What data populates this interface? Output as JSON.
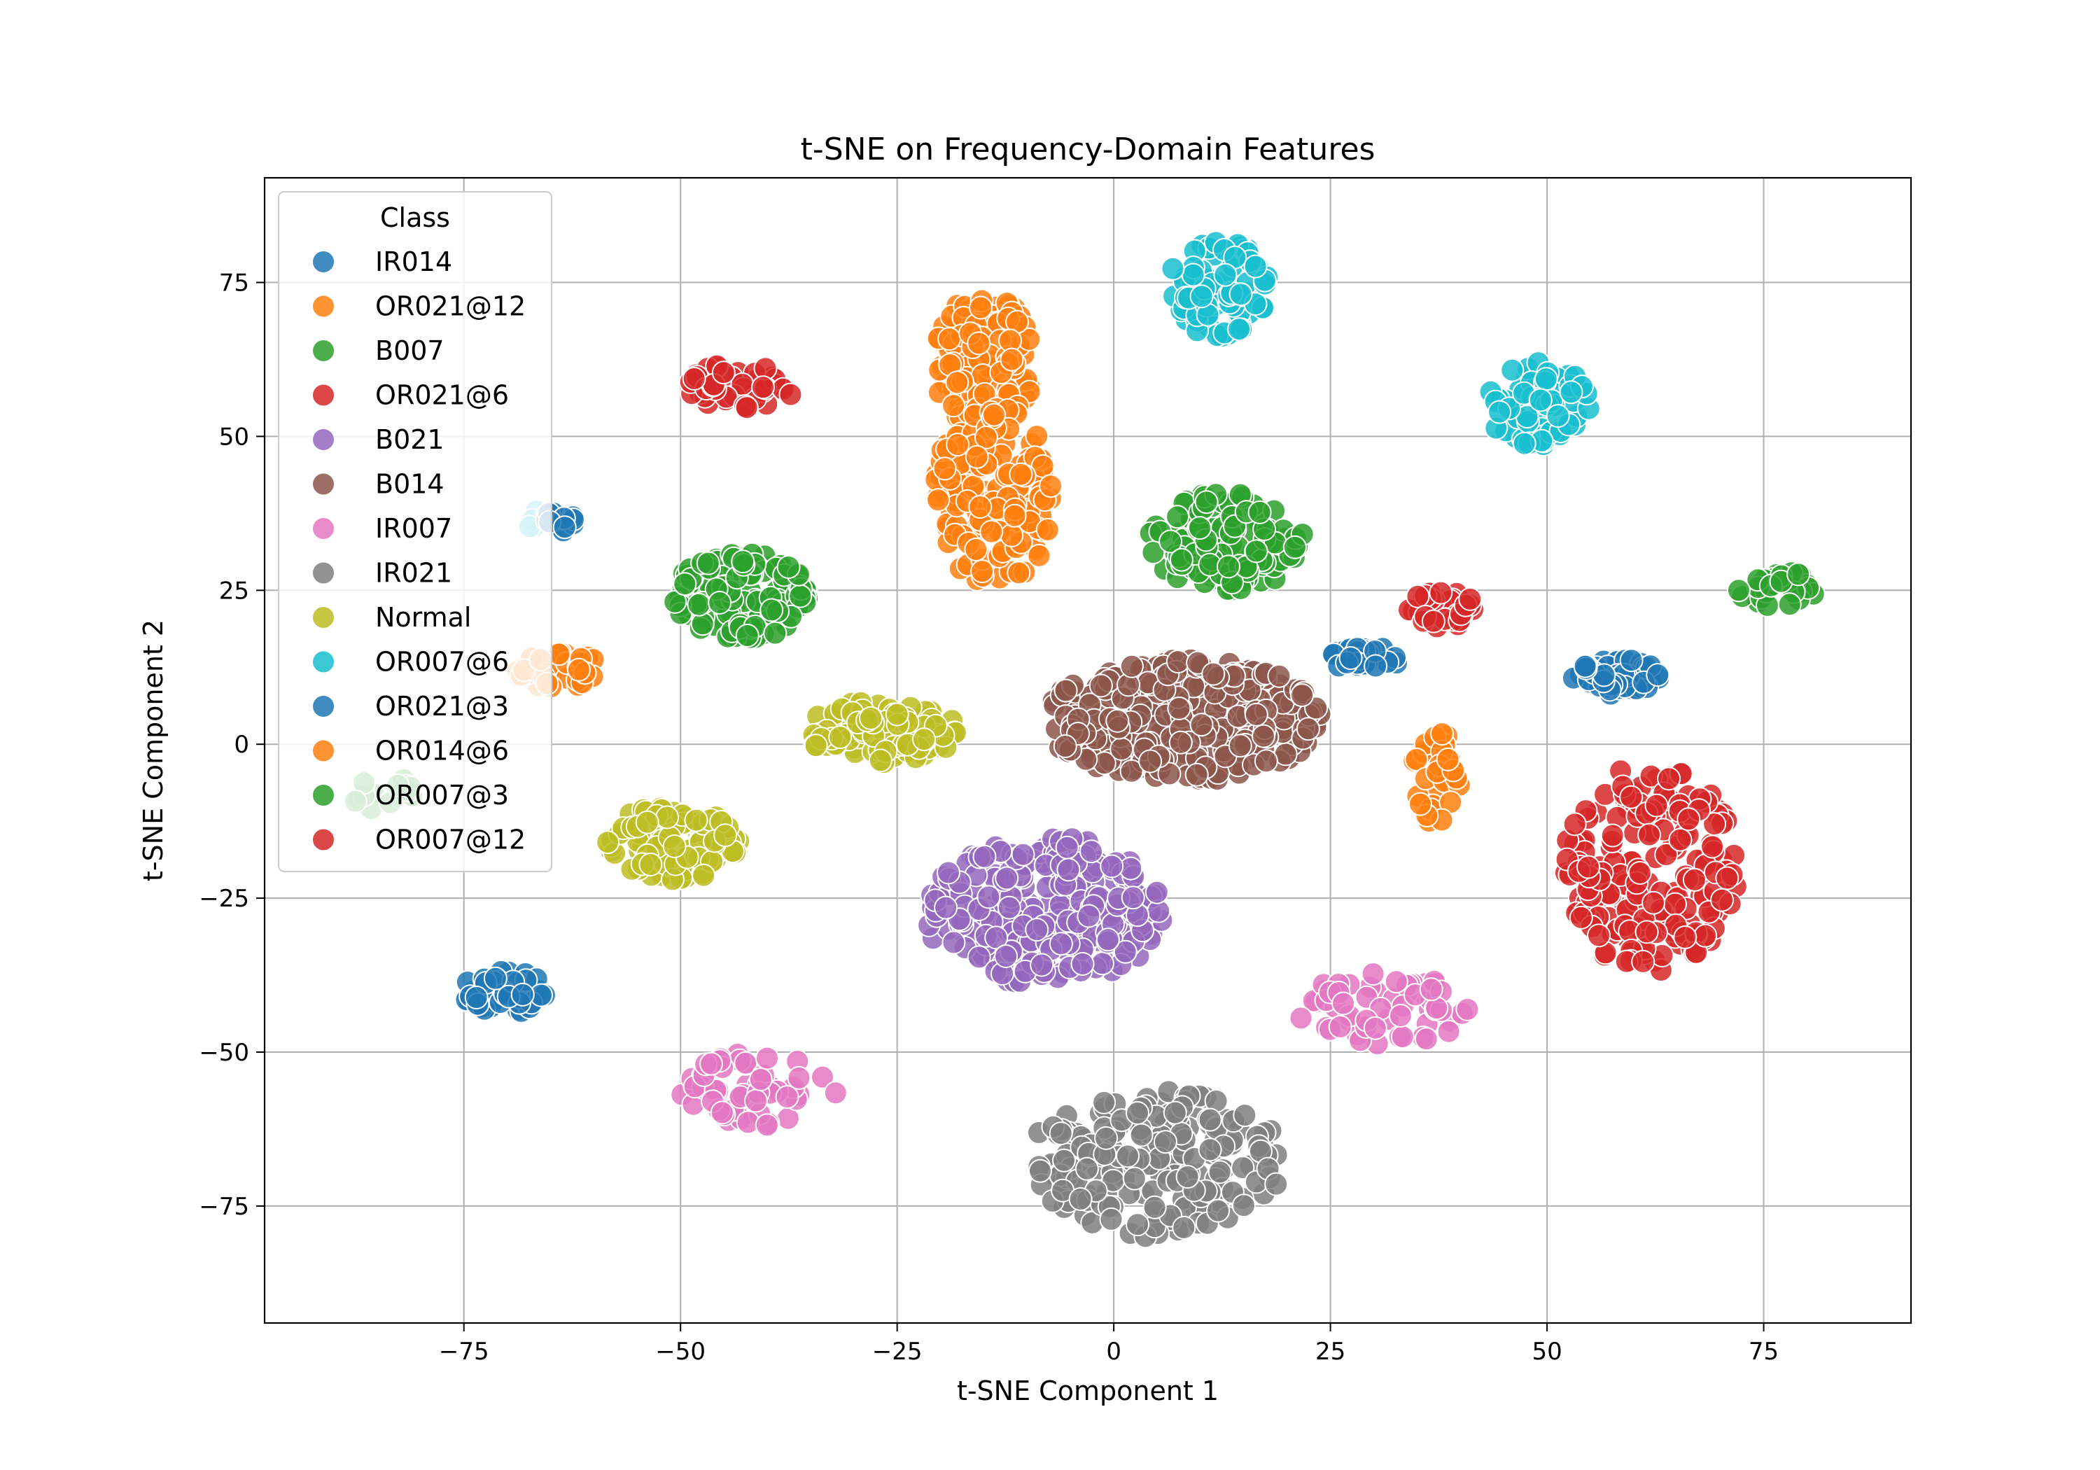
{
  "chart_data": {
    "type": "scatter",
    "title": "t-SNE on Frequency-Domain Features",
    "xlabel": "t-SNE Component 1",
    "ylabel": "t-SNE Component 2",
    "xlim": [
      -98,
      92
    ],
    "ylim": [
      -94,
      92
    ],
    "xticks": [
      -75,
      -50,
      -25,
      0,
      25,
      50,
      75
    ],
    "yticks": [
      -75,
      -50,
      -25,
      0,
      25,
      50,
      75
    ],
    "xtick_labels": [
      "−75",
      "−50",
      "−25",
      "0",
      "25",
      "50",
      "75"
    ],
    "ytick_labels": [
      "−75",
      "−50",
      "−25",
      "0",
      "25",
      "50",
      "75"
    ],
    "grid": true,
    "legend": {
      "title": "Class",
      "placement": "upper-left",
      "entries": [
        "IR014",
        "OR021@12",
        "B007",
        "OR021@6",
        "B021",
        "B014",
        "IR007",
        "IR021",
        "Normal",
        "OR007@6",
        "OR021@3",
        "OR014@6",
        "OR007@3",
        "OR007@12"
      ]
    },
    "series": [
      {
        "name": "IR014",
        "color": "#1f77b4",
        "clusters": [
          {
            "cx": -70,
            "cy": -40,
            "rx": 5,
            "ry": 5,
            "n": 45
          }
        ]
      },
      {
        "name": "OR021@12",
        "color": "#ff7f0e",
        "clusters": [
          {
            "cx": -15,
            "cy": 62,
            "rx": 6,
            "ry": 11,
            "n": 120
          },
          {
            "cx": -14,
            "cy": 40,
            "rx": 7,
            "ry": 15,
            "n": 150
          }
        ]
      },
      {
        "name": "B007",
        "color": "#2ca02c",
        "clusters": [
          {
            "cx": 13,
            "cy": 33,
            "rx": 9,
            "ry": 8,
            "n": 130
          }
        ]
      },
      {
        "name": "OR021@6",
        "color": "#d62728",
        "clusters": [
          {
            "cx": -43,
            "cy": 58,
            "rx": 6,
            "ry": 4,
            "n": 45
          },
          {
            "cx": 62,
            "cy": -20,
            "rx": 10,
            "ry": 17,
            "n": 200
          }
        ]
      },
      {
        "name": "B021",
        "color": "#9467bd",
        "clusters": [
          {
            "cx": -8,
            "cy": -27,
            "rx": 14,
            "ry": 12,
            "n": 280
          }
        ]
      },
      {
        "name": "B014",
        "color": "#8c564b",
        "clusters": [
          {
            "cx": 8,
            "cy": 4,
            "rx": 16,
            "ry": 10,
            "n": 330
          }
        ]
      },
      {
        "name": "IR007",
        "color": "#e377c2",
        "clusters": [
          {
            "cx": -41,
            "cy": -56,
            "rx": 9,
            "ry": 6,
            "n": 55
          },
          {
            "cx": 31,
            "cy": -43,
            "rx": 10,
            "ry": 6,
            "n": 60
          }
        ]
      },
      {
        "name": "IR021",
        "color": "#7f7f7f",
        "clusters": [
          {
            "cx": 5,
            "cy": -68,
            "rx": 15,
            "ry": 12,
            "n": 200
          }
        ]
      },
      {
        "name": "Normal",
        "color": "#bcbd22",
        "clusters": [
          {
            "cx": -27,
            "cy": 2,
            "rx": 9,
            "ry": 5,
            "n": 110
          },
          {
            "cx": -51,
            "cy": -16,
            "rx": 8,
            "ry": 6,
            "n": 110
          }
        ]
      },
      {
        "name": "OR007@6",
        "color": "#17becf",
        "clusters": [
          {
            "cx": 12,
            "cy": 74,
            "rx": 6,
            "ry": 8,
            "n": 80
          },
          {
            "cx": 49,
            "cy": 55,
            "rx": 6,
            "ry": 7,
            "n": 70
          },
          {
            "cx": -66,
            "cy": 36,
            "rx": 2,
            "ry": 2,
            "n": 6
          }
        ]
      },
      {
        "name": "OR021@3",
        "color": "#1f77b4",
        "clusters": [
          {
            "cx": 58,
            "cy": 11,
            "rx": 5,
            "ry": 3,
            "n": 50
          },
          {
            "cx": -64,
            "cy": 36,
            "rx": 2,
            "ry": 2,
            "n": 14
          },
          {
            "cx": 29,
            "cy": 14,
            "rx": 4,
            "ry": 2,
            "n": 30
          }
        ]
      },
      {
        "name": "OR014@6",
        "color": "#ff7f0e",
        "clusters": [
          {
            "cx": -64,
            "cy": 12,
            "rx": 5,
            "ry": 3,
            "n": 35
          },
          {
            "cx": 37,
            "cy": -5,
            "rx": 3,
            "ry": 8,
            "n": 35
          }
        ]
      },
      {
        "name": "OR007@3",
        "color": "#2ca02c",
        "clusters": [
          {
            "cx": -43,
            "cy": 24,
            "rx": 8,
            "ry": 7,
            "n": 140
          },
          {
            "cx": 77,
            "cy": 25,
            "rx": 5,
            "ry": 3,
            "n": 25
          },
          {
            "cx": -84,
            "cy": -8,
            "rx": 4,
            "ry": 3,
            "n": 14
          }
        ]
      },
      {
        "name": "OR007@12",
        "color": "#d62728",
        "clusters": [
          {
            "cx": 38,
            "cy": 22,
            "rx": 4,
            "ry": 3,
            "n": 40
          }
        ]
      }
    ]
  }
}
